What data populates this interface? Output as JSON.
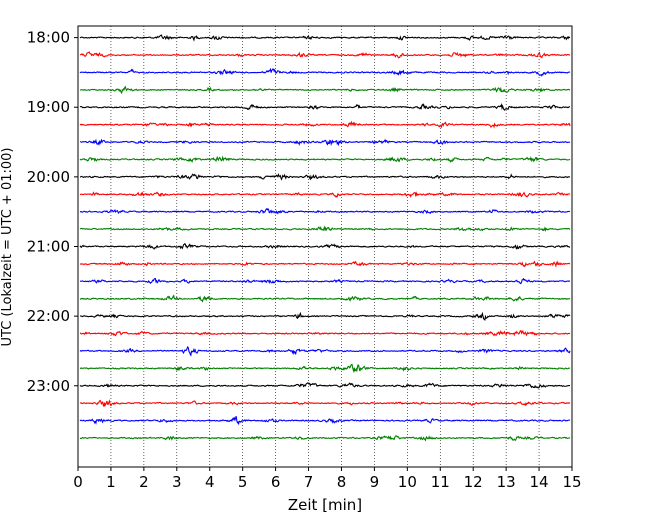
{
  "chart_data": {
    "type": "line",
    "title": "",
    "xlabel": "Zeit  [min]",
    "ylabel": "UTC (Lokalzeit = UTC + 01:00)",
    "xlim": [
      0,
      15
    ],
    "x_ticks": [
      0,
      1,
      2,
      3,
      4,
      5,
      6,
      7,
      8,
      9,
      10,
      11,
      12,
      13,
      14,
      15
    ],
    "x_tick_labels": [
      "0",
      "1",
      "2",
      "3",
      "4",
      "5",
      "6",
      "7",
      "8",
      "9",
      "10",
      "11",
      "12",
      "13",
      "14",
      "15"
    ],
    "y_ticks": [
      "18:00",
      "19:00",
      "20:00",
      "21:00",
      "22:00",
      "23:00"
    ],
    "y_range": [
      "17:50",
      "00:10"
    ],
    "trace_interval_minutes": 15,
    "grid": "vertical dotted at each minute",
    "trace_start_times": [
      "18:00",
      "18:15",
      "18:30",
      "18:45",
      "19:00",
      "19:15",
      "19:30",
      "19:45",
      "20:00",
      "20:15",
      "20:30",
      "20:45",
      "21:00",
      "21:15",
      "21:30",
      "21:45",
      "22:00",
      "22:15",
      "22:30",
      "22:45",
      "23:00",
      "23:15",
      "23:30",
      "23:45"
    ],
    "trace_colors": [
      "#000000",
      "#ff0000",
      "#0000ff",
      "#008000"
    ]
  }
}
